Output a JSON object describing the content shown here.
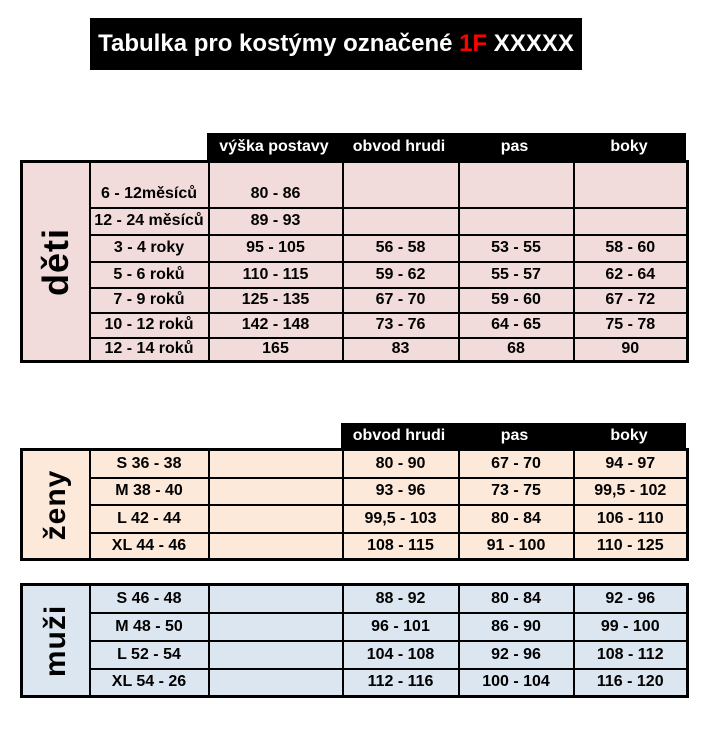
{
  "title": {
    "prefix": "Tabulka pro kostýmy označené ",
    "highlight": "1F",
    "suffix": " XXXXX"
  },
  "colors": {
    "banner_bg": "#000000",
    "banner_text": "#FFFFFF",
    "highlight_red": "#FF0000",
    "header_bg": "#000000",
    "header_text": "#FFFFFF",
    "table_deti_bg": "#F2DCDB",
    "table_zeny_bg": "#FDE9D9",
    "table_muzi_bg": "#DCE6F1",
    "border": "#000000"
  },
  "tables": [
    {
      "id": "deti",
      "label": "děti",
      "bg": "#F2DCDB",
      "headers": [
        "výška postavy",
        "obvod hrudi",
        "pas",
        "boky"
      ],
      "columns": [
        "velikost",
        "výška postavy",
        "obvod hrudi",
        "pas",
        "boky"
      ],
      "rows": [
        [
          "6 - 12měsíců",
          "80 - 86",
          "",
          "",
          ""
        ],
        [
          "12 - 24 měsíců",
          "89 - 93",
          "",
          "",
          ""
        ],
        [
          "3 - 4 roky",
          "95 - 105",
          "56 - 58",
          "53 - 55",
          "58 - 60"
        ],
        [
          "5 - 6 roků",
          "110 - 115",
          "59 - 62",
          "55 - 57",
          "62 - 64"
        ],
        [
          "7 - 9 roků",
          "125 - 135",
          "67 - 70",
          "59 - 60",
          "67 - 72"
        ],
        [
          "10 - 12 roků",
          "142 - 148",
          "73 - 76",
          "64 - 65",
          "75 - 78"
        ],
        [
          "12 - 14 roků",
          "165",
          "83",
          "68",
          "90"
        ]
      ]
    },
    {
      "id": "zeny",
      "label": "ženy",
      "bg": "#FDE9D9",
      "headers": [
        "obvod hrudi",
        "pas",
        "boky"
      ],
      "columns": [
        "velikost",
        "",
        "obvod hrudi",
        "pas",
        "boky"
      ],
      "rows": [
        [
          "S 36 - 38",
          "",
          "80 - 90",
          "67 - 70",
          "94 - 97"
        ],
        [
          "M 38 - 40",
          "",
          "93 - 96",
          "73 - 75",
          "99,5 - 102"
        ],
        [
          "L 42 - 44",
          "",
          "99,5 - 103",
          "80 - 84",
          "106 - 110"
        ],
        [
          "XL 44 - 46",
          "",
          "108 - 115",
          "91 - 100",
          "110 - 125"
        ]
      ]
    },
    {
      "id": "muzi",
      "label": "muži",
      "bg": "#DCE6F1",
      "headers": [],
      "columns": [
        "velikost",
        "",
        "obvod hrudi",
        "pas",
        "boky"
      ],
      "rows": [
        [
          "S 46 - 48",
          "",
          "88 - 92",
          "80 - 84",
          "92 - 96"
        ],
        [
          "M 48 - 50",
          "",
          "96 - 101",
          "86 - 90",
          "99 - 100"
        ],
        [
          "L 52 - 54",
          "",
          "104 - 108",
          "92 - 96",
          "108 - 112"
        ],
        [
          "XL 54 - 26",
          "",
          "112 - 116",
          "100 - 104",
          "116 - 120"
        ]
      ]
    }
  ]
}
